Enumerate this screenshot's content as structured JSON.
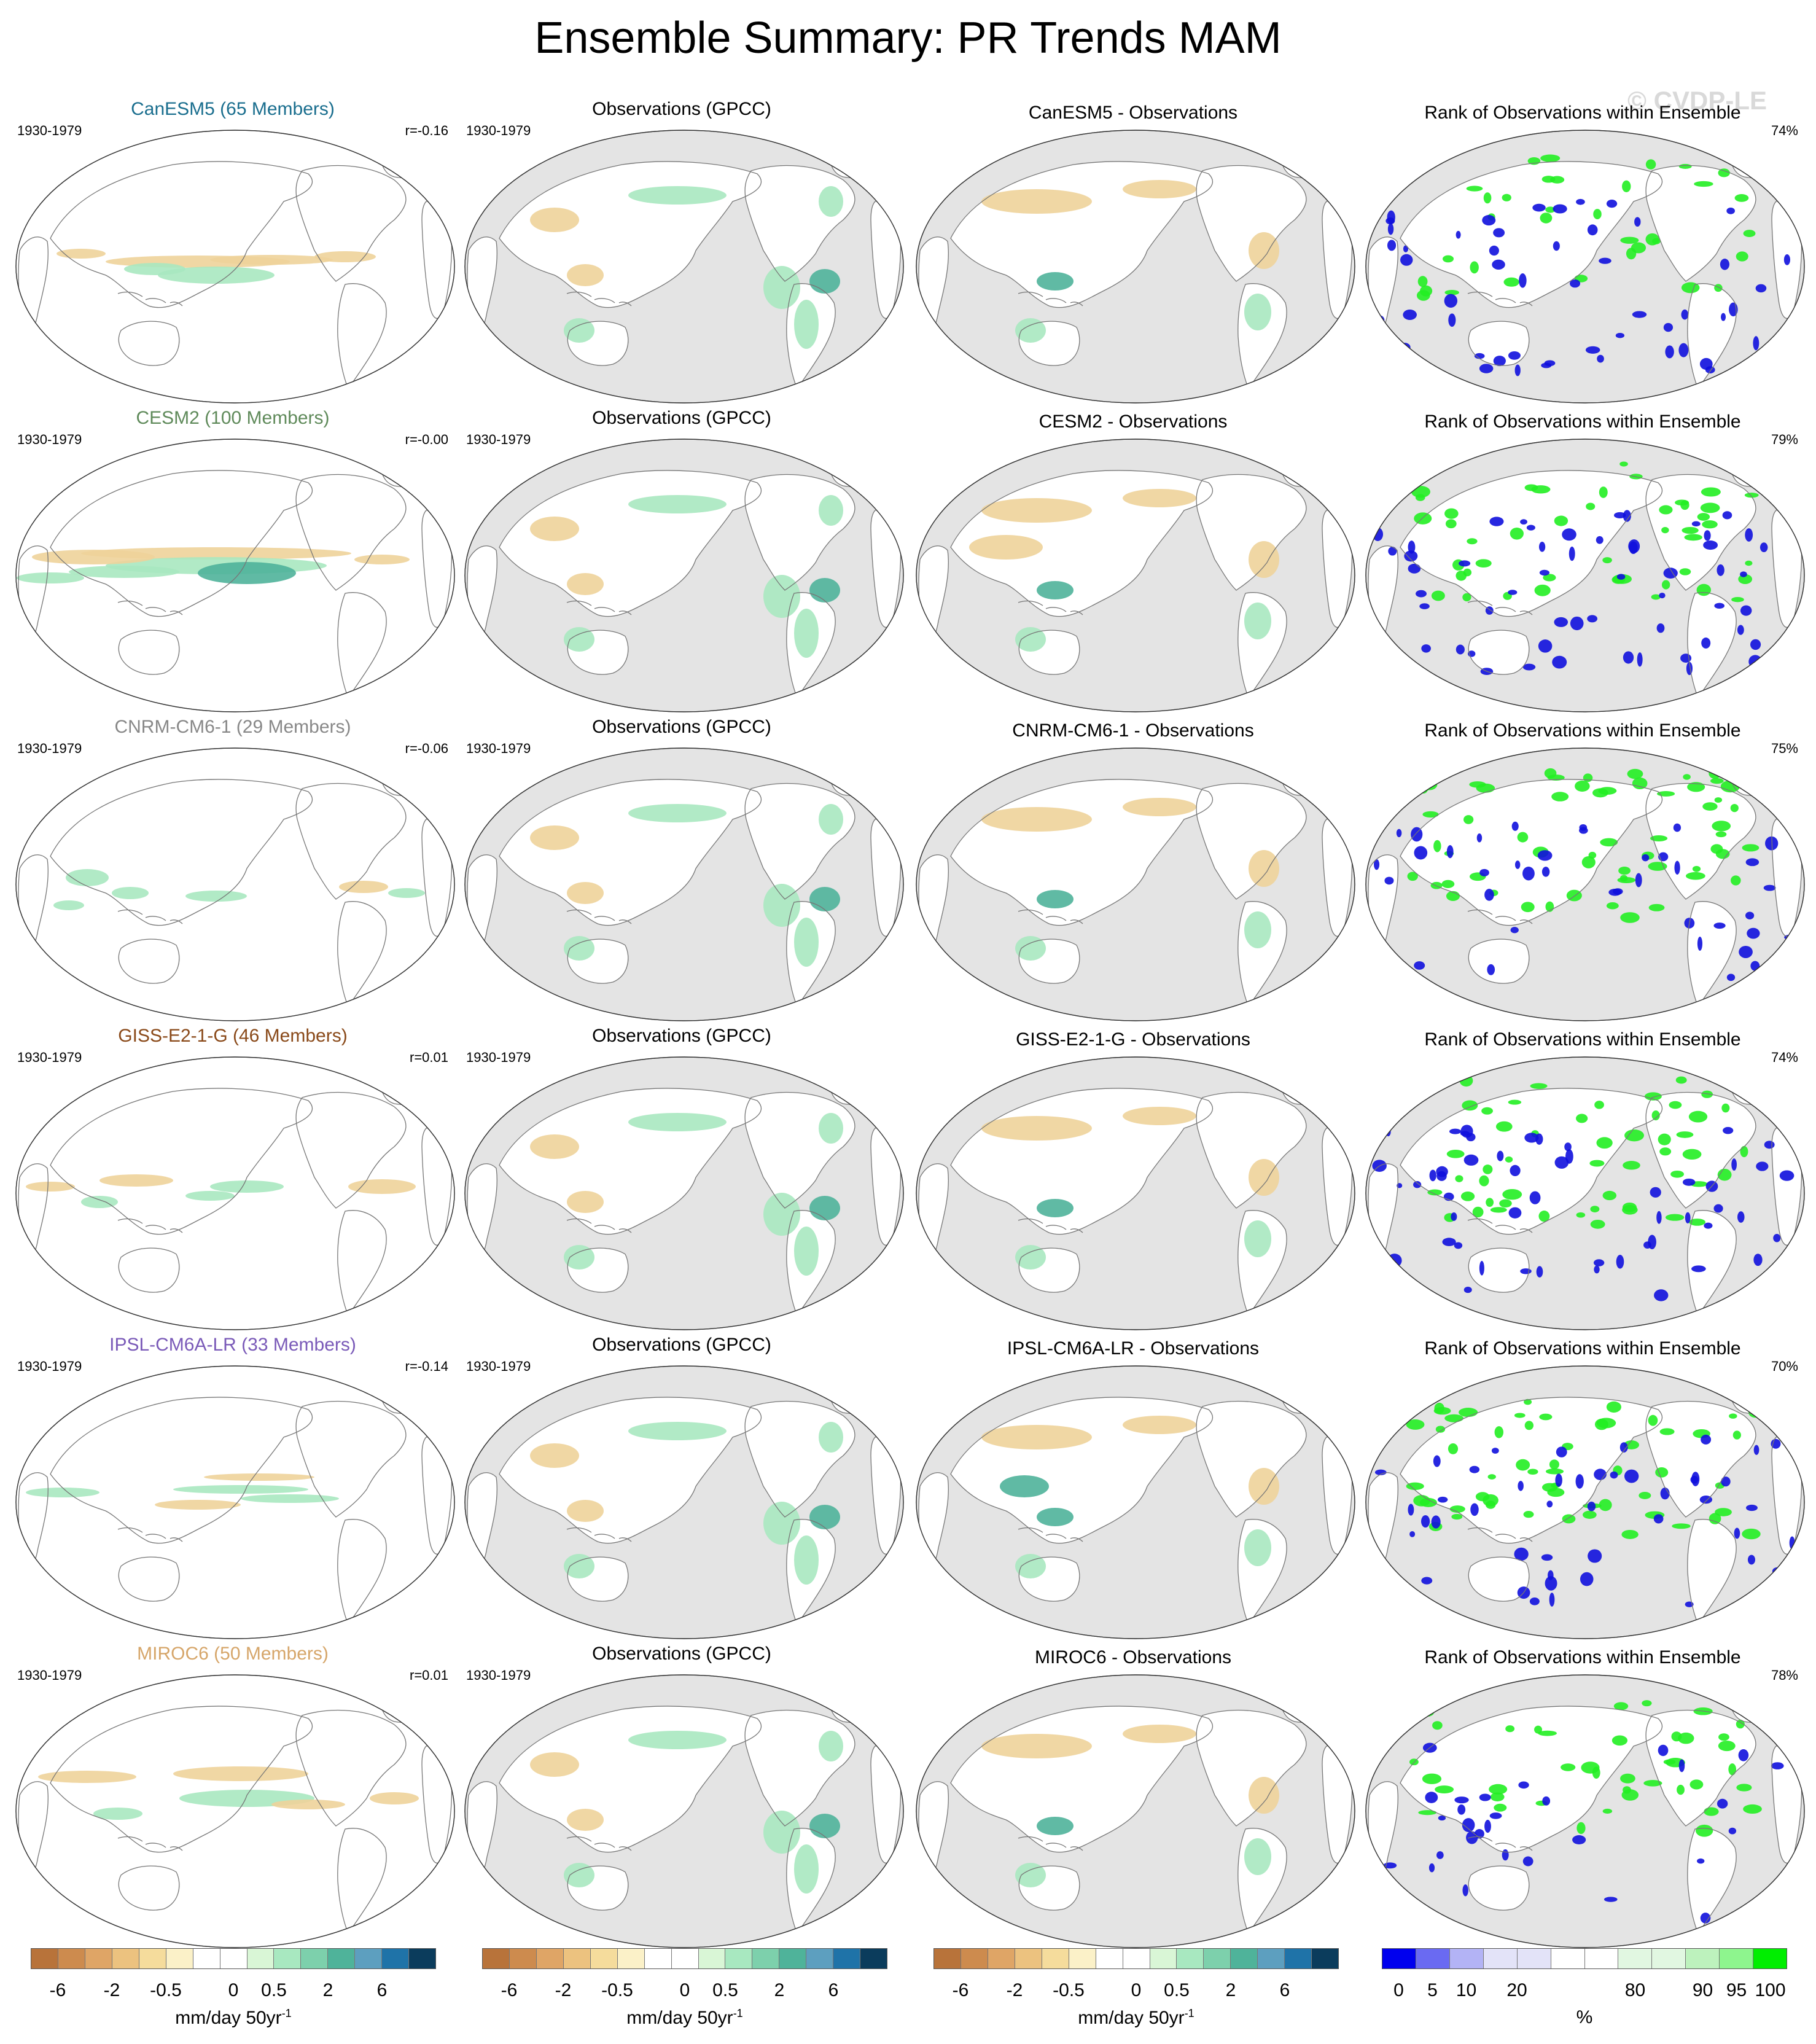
{
  "title": "Ensemble Summary: PR Trends MAM",
  "watermark": "© CVDP-LE",
  "years": "1930-1979",
  "obs_title": "Observations (GPCC)",
  "rank_title": "Rank of Observations within Ensemble",
  "rows": [
    {
      "model": "CanESM5",
      "title": "CanESM5 (65 Members)",
      "color": "#1a6e8e",
      "r": "r=-0.16",
      "diff_title": "CanESM5 - Observations",
      "rank_pct": "74%"
    },
    {
      "model": "CESM2",
      "title": "CESM2 (100 Members)",
      "color": "#5f8a5a",
      "r": "r=-0.00",
      "diff_title": "CESM2 - Observations",
      "rank_pct": "79%"
    },
    {
      "model": "CNRM-CM6-1",
      "title": "CNRM-CM6-1 (29 Members)",
      "color": "#888888",
      "r": "r=-0.06",
      "diff_title": "CNRM-CM6-1 - Observations",
      "rank_pct": "75%"
    },
    {
      "model": "GISS-E2-1-G",
      "title": "GISS-E2-1-G (46 Members)",
      "color": "#8a4a1a",
      "r": "r=0.01",
      "diff_title": "GISS-E2-1-G - Observations",
      "rank_pct": "74%"
    },
    {
      "model": "IPSL-CM6A-LR",
      "title": "IPSL-CM6A-LR (33 Members)",
      "color": "#7a5ab8",
      "r": "r=-0.14",
      "diff_title": "IPSL-CM6A-LR - Observations",
      "rank_pct": "70%"
    },
    {
      "model": "MIROC6",
      "title": "MIROC6 (50 Members)",
      "color": "#d6a66a",
      "r": "r=0.01",
      "diff_title": "MIROC6 - Observations",
      "rank_pct": "78%"
    }
  ],
  "trend_colorbar": {
    "colors": [
      "#b8733a",
      "#cd8b4e",
      "#dfa566",
      "#ecc27f",
      "#f5dc9c",
      "#fbf1c8",
      "#ffffff",
      "#ffffff",
      "#d9f6d6",
      "#a8e8c0",
      "#7dd0ac",
      "#4fb39a",
      "#5d9fbf",
      "#1f73a8",
      "#0b3c5c"
    ],
    "ticks": [
      "-6",
      "-2",
      "-0.5",
      "0",
      "0.5",
      "2",
      "6"
    ],
    "label": "mm/day 50yr",
    "label_sup": "-1"
  },
  "rank_colorbar": {
    "colors": [
      "#0000ee",
      "#6a6af2",
      "#b3b3f5",
      "#e3e3f8",
      "#e3e3f8",
      "#ffffff",
      "#ffffff",
      "#e1f7e1",
      "#e1f7e1",
      "#bdf2bd",
      "#8ef58e",
      "#00ee00"
    ],
    "ticks": [
      "0",
      "5",
      "10",
      "20",
      "80",
      "90",
      "95",
      "100"
    ],
    "label": "%"
  },
  "colors": {
    "ocean_obs": "#e4e4e4",
    "land_white": "#ffffff",
    "coast": "#777777",
    "brown": "#eed39a",
    "green": "#a8e8c0",
    "teal": "#4fb39a",
    "rank_blue": "#1010dd",
    "rank_green": "#22ee22"
  }
}
